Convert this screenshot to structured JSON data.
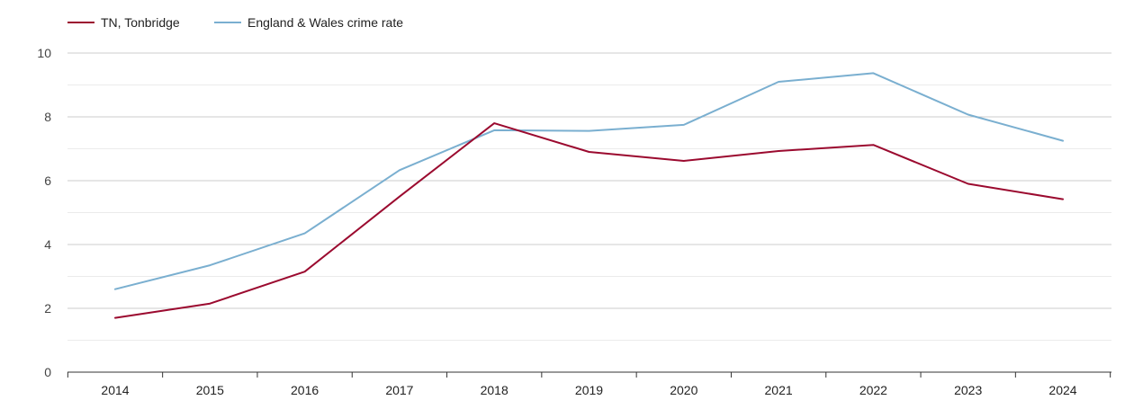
{
  "chart_data": {
    "type": "line",
    "title": "",
    "xlabel": "",
    "ylabel": "",
    "categories": [
      "2014",
      "2015",
      "2016",
      "2017",
      "2018",
      "2019",
      "2020",
      "2021",
      "2022",
      "2023",
      "2024"
    ],
    "ylim": [
      0,
      10
    ],
    "yticks": [
      "0",
      "2",
      "4",
      "6",
      "8",
      "10"
    ],
    "grid": true,
    "legend_position": "top-left",
    "series": [
      {
        "name": "TN, Tonbridge",
        "color": "#9b0a2f",
        "values": [
          1.7,
          2.15,
          3.15,
          5.5,
          7.8,
          6.9,
          6.62,
          6.93,
          7.12,
          5.9,
          5.42
        ]
      },
      {
        "name": "England & Wales crime rate",
        "color": "#7aafd0",
        "values": [
          2.6,
          3.35,
          4.35,
          6.33,
          7.58,
          7.56,
          7.75,
          9.1,
          9.37,
          8.07,
          7.25
        ]
      }
    ]
  }
}
